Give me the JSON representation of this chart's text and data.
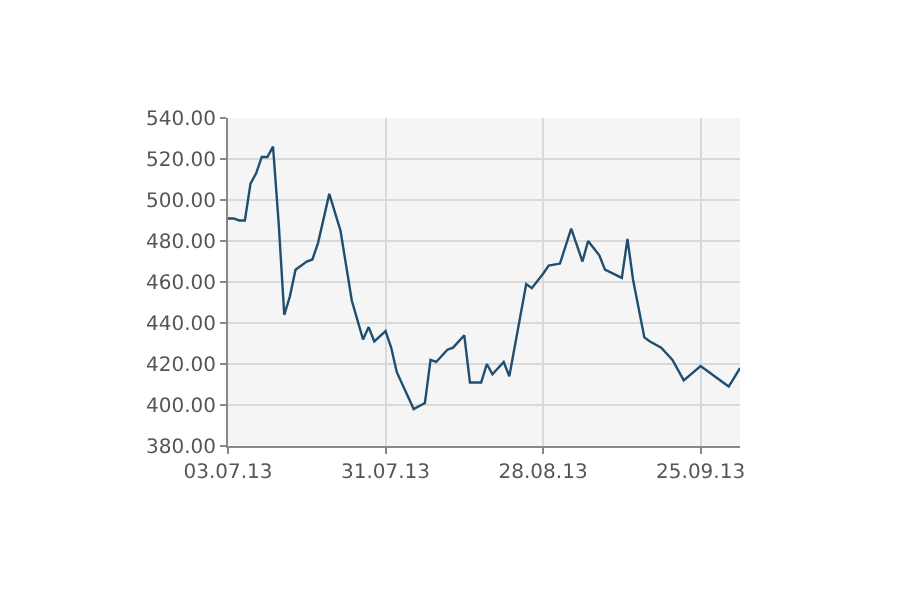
{
  "chart_data": {
    "type": "line",
    "x": [
      "2013-07-03",
      "2013-07-04",
      "2013-07-05",
      "2013-07-06",
      "2013-07-07",
      "2013-07-08",
      "2013-07-09",
      "2013-07-10",
      "2013-07-11",
      "2013-07-12",
      "2013-07-13",
      "2013-07-14",
      "2013-07-15",
      "2013-07-17",
      "2013-07-18",
      "2013-07-19",
      "2013-07-21",
      "2013-07-23",
      "2013-07-25",
      "2013-07-27",
      "2013-07-28",
      "2013-07-29",
      "2013-07-31",
      "2013-08-01",
      "2013-08-02",
      "2013-08-05",
      "2013-08-07",
      "2013-08-08",
      "2013-08-09",
      "2013-08-11",
      "2013-08-12",
      "2013-08-14",
      "2013-08-15",
      "2013-08-17",
      "2013-08-18",
      "2013-08-19",
      "2013-08-21",
      "2013-08-22",
      "2013-08-25",
      "2013-08-26",
      "2013-08-28",
      "2013-08-29",
      "2013-08-31",
      "2013-09-02",
      "2013-09-04",
      "2013-09-05",
      "2013-09-07",
      "2013-09-08",
      "2013-09-11",
      "2013-09-12",
      "2013-09-13",
      "2013-09-15",
      "2013-09-16",
      "2013-09-18",
      "2013-09-20",
      "2013-09-22",
      "2013-09-25",
      "2013-09-27",
      "2013-09-29",
      "2013-09-30",
      "2013-10-02"
    ],
    "series": [
      {
        "color": "#1f4e6e",
        "values": [
          491,
          491,
          490,
          490,
          508,
          513,
          521,
          521,
          526,
          489,
          444,
          453,
          466,
          470,
          471,
          479,
          503,
          485,
          451,
          432,
          438,
          431,
          436,
          428,
          416,
          398,
          401,
          422,
          421,
          427,
          428,
          434,
          411,
          411,
          420,
          415,
          421,
          414,
          459,
          457,
          464,
          468,
          469,
          486,
          470,
          480,
          473,
          466,
          462,
          481,
          461,
          433,
          431,
          428,
          422,
          412,
          419,
          415,
          411,
          409,
          418
        ]
      }
    ],
    "xlim": [
      "2013-07-03",
      "2013-10-02"
    ],
    "xticks": [
      {
        "value": "2013-07-03",
        "label": "03.07.13"
      },
      {
        "value": "2013-07-31",
        "label": "31.07.13"
      },
      {
        "value": "2013-08-28",
        "label": "28.08.13"
      },
      {
        "value": "2013-09-25",
        "label": "25.09.13"
      }
    ],
    "ylim": [
      380,
      540
    ],
    "yticks": [
      {
        "value": 380,
        "label": "380.00"
      },
      {
        "value": 400,
        "label": "400.00"
      },
      {
        "value": 420,
        "label": "420.00"
      },
      {
        "value": 440,
        "label": "440.00"
      },
      {
        "value": 460,
        "label": "460.00"
      },
      {
        "value": 480,
        "label": "480.00"
      },
      {
        "value": 500,
        "label": "500.00"
      },
      {
        "value": 520,
        "label": "520.00"
      },
      {
        "value": 540,
        "label": "540.00"
      }
    ],
    "grid": true,
    "legend": false
  }
}
